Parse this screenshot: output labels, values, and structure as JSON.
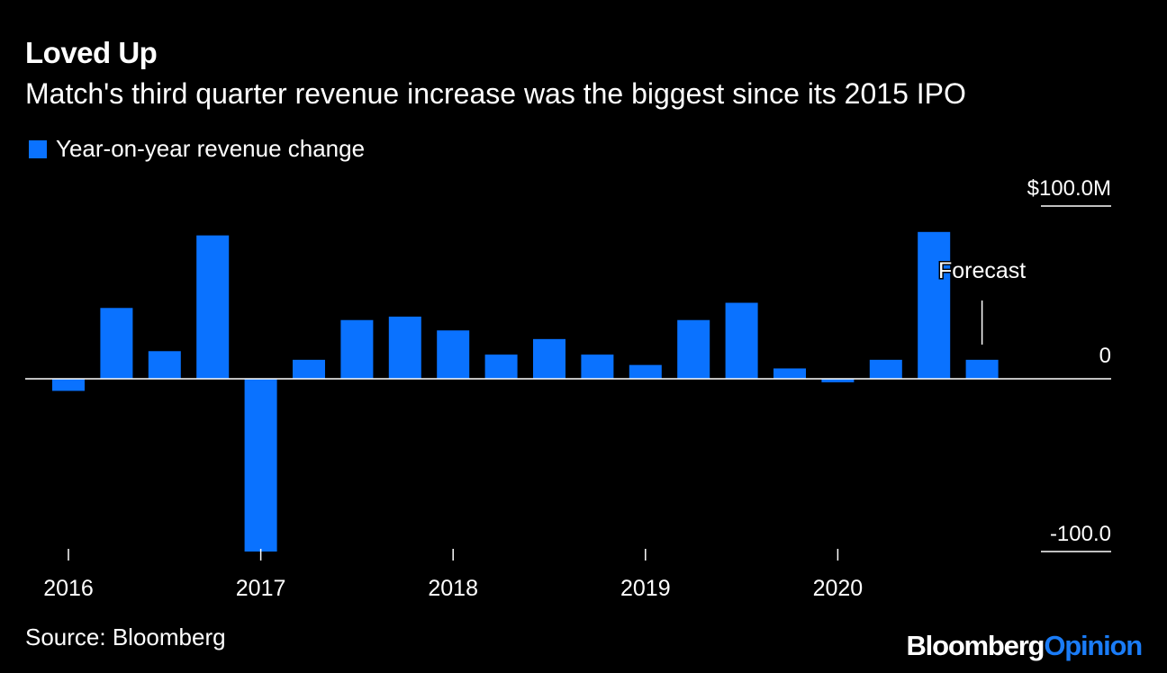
{
  "title": "Loved Up",
  "subtitle": "Match's third quarter revenue increase was the biggest since its 2015 IPO",
  "legend": {
    "label": "Year-on-year revenue change"
  },
  "colors": {
    "background": "#000000",
    "bar": "#0a72ff",
    "text": "#ffffff"
  },
  "source": "Source: Bloomberg",
  "branding": {
    "bloomberg": "Bloomberg",
    "opinion": "Opinion"
  },
  "chart_data": {
    "type": "bar",
    "series": [
      {
        "name": "Year-on-year revenue change",
        "x": [
          "2016 Q1",
          "2016 Q2",
          "2016 Q3",
          "2016 Q4",
          "2017 Q1",
          "2017 Q2",
          "2017 Q3",
          "2017 Q4",
          "2018 Q1",
          "2018 Q2",
          "2018 Q3",
          "2018 Q4",
          "2019 Q1",
          "2019 Q2",
          "2019 Q3",
          "2019 Q4",
          "2020 Q1",
          "2020 Q2",
          "2020 Q3",
          "2020 Q4"
        ],
        "values": [
          -7,
          41,
          16,
          83,
          -100,
          11,
          34,
          36,
          28,
          14,
          23,
          14,
          8,
          34,
          44,
          6,
          -2,
          11,
          85,
          11
        ]
      }
    ],
    "y_axis": {
      "ticks": [
        {
          "value": 100,
          "label": "$100.0M"
        },
        {
          "value": 0,
          "label": "0"
        },
        {
          "value": -100,
          "label": "-100.0"
        }
      ],
      "ylim": [
        -100,
        100
      ],
      "position": "right"
    },
    "x_axis": {
      "labels": [
        {
          "label": "2016",
          "at_index": 0
        },
        {
          "label": "2017",
          "at_index": 4
        },
        {
          "label": "2018",
          "at_index": 8
        },
        {
          "label": "2019",
          "at_index": 12
        },
        {
          "label": "2020",
          "at_index": 16
        }
      ]
    },
    "annotations": [
      {
        "text": "Forecast",
        "at_index": 19
      }
    ],
    "grid": false
  }
}
